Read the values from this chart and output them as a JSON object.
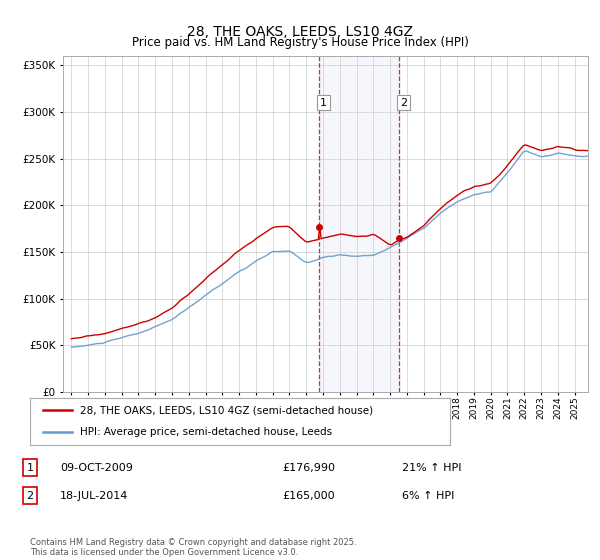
{
  "title": "28, THE OAKS, LEEDS, LS10 4GZ",
  "subtitle": "Price paid vs. HM Land Registry's House Price Index (HPI)",
  "legend_property": "28, THE OAKS, LEEDS, LS10 4GZ (semi-detached house)",
  "legend_hpi": "HPI: Average price, semi-detached house, Leeds",
  "transaction1_label": "1",
  "transaction1_date": "09-OCT-2009",
  "transaction1_price": "£176,990",
  "transaction1_hpi": "21% ↑ HPI",
  "transaction2_label": "2",
  "transaction2_date": "18-JUL-2014",
  "transaction2_price": "£165,000",
  "transaction2_hpi": "6% ↑ HPI",
  "footer": "Contains HM Land Registry data © Crown copyright and database right 2025.\nThis data is licensed under the Open Government Licence v3.0.",
  "property_color": "#cc0000",
  "hpi_color": "#6699cc",
  "shade_color": "#ddeeff",
  "transaction1_x": 2009.77,
  "transaction2_x": 2014.54,
  "ylim_min": 0,
  "ylim_max": 360000,
  "xlim_min": 1994.5,
  "xlim_max": 2025.8
}
